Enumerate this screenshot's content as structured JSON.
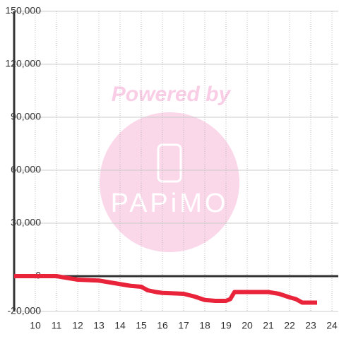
{
  "chart_data": {
    "type": "line",
    "watermark": {
      "title": "Powered by",
      "logo": "PAPiMO"
    },
    "x": [
      9,
      11,
      11.5,
      12,
      13,
      13.5,
      14,
      14.5,
      15,
      15.3,
      15.7,
      16,
      17,
      17.5,
      18,
      18.5,
      19,
      19.2,
      19.4,
      20,
      21,
      21.5,
      22,
      22.3,
      22.6,
      23.3
    ],
    "series": [
      {
        "color": "#e8233a",
        "values": [
          0,
          0,
          -1000,
          -2000,
          -2500,
          -3500,
          -4500,
          -5500,
          -6000,
          -8000,
          -9000,
          -9500,
          -10000,
          -11500,
          -13500,
          -14000,
          -14000,
          -13000,
          -9000,
          -9000,
          -9000,
          -10000,
          -12000,
          -13000,
          -15000,
          -15000
        ]
      }
    ],
    "xlim": [
      9,
      24.3
    ],
    "xticks": [
      10,
      11,
      12,
      13,
      14,
      15,
      16,
      17,
      18,
      19,
      20,
      21,
      22,
      23,
      24
    ],
    "ylim": [
      -20000,
      150000
    ],
    "yticks": [
      {
        "value": -20000,
        "label": "-20,000"
      },
      0,
      {
        "value": 30000,
        "label": "30,000"
      },
      {
        "value": 60000,
        "label": "60,000"
      },
      {
        "value": 90000,
        "label": "90,000"
      },
      {
        "value": 120000,
        "label": "120,000"
      },
      {
        "value": 150000,
        "label": "150,000"
      }
    ],
    "grid": true
  }
}
